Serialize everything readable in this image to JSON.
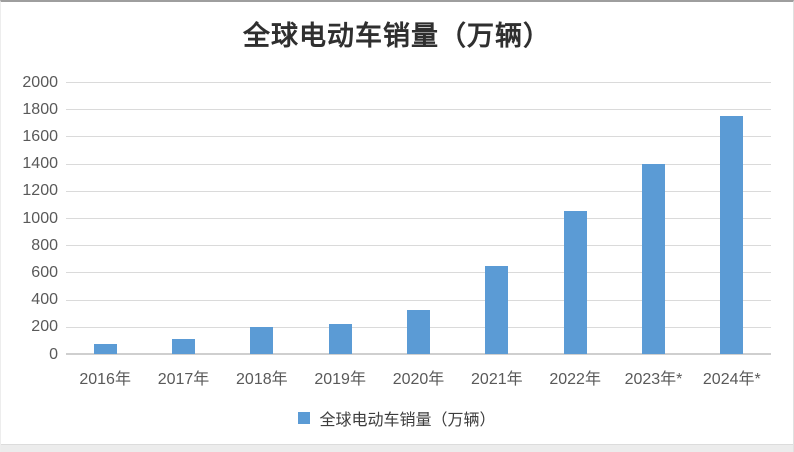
{
  "page": {
    "background": "#ffffff",
    "top_border_color": "#9e9e9e",
    "bottom_strip_color": "#ececec"
  },
  "chart_data": {
    "type": "bar",
    "title": "全球电动车销量（万辆）",
    "categories": [
      "2016年",
      "2017年",
      "2018年",
      "2019年",
      "2020年",
      "2021年",
      "2022年",
      "2023年*",
      "2024年*"
    ],
    "values": [
      70,
      110,
      200,
      220,
      320,
      650,
      1050,
      1400,
      1750
    ],
    "yticks": [
      0,
      200,
      400,
      600,
      800,
      1000,
      1200,
      1400,
      1600,
      1800,
      2000
    ],
    "ylim": [
      0,
      2000
    ],
    "xlabel": "",
    "ylabel": "",
    "grid": true,
    "bar_color": "#5B9BD5",
    "gridline_color": "#dadada",
    "axis_label_color": "#595959",
    "legend": {
      "label": "全球电动车销量（万辆）",
      "position": "bottom",
      "marker_color": "#5B9BD5"
    }
  }
}
